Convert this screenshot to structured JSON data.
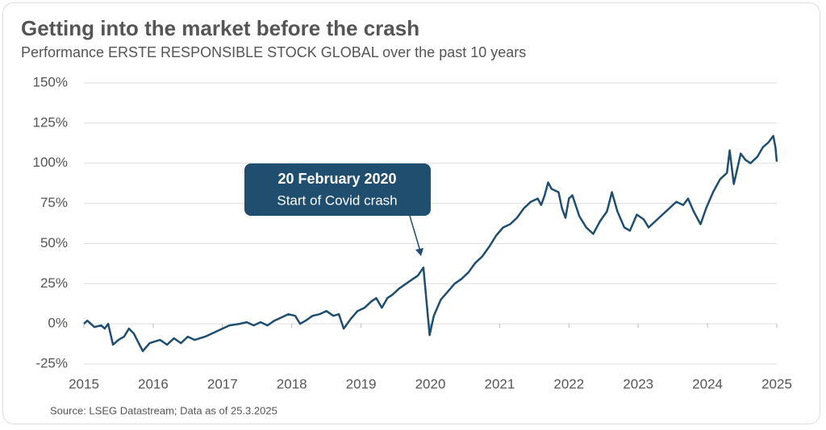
{
  "chart_data": {
    "type": "line",
    "title": "Getting into the market before the crash",
    "subtitle": "Performance ERSTE RESPONSIBLE STOCK GLOBAL over the past 10 years",
    "source": "Source: LSEG Datastream; Data as of 25.3.2025",
    "annotation": {
      "title": "20 February 2020",
      "text": "Start of Covid crash"
    },
    "xlim": [
      2015,
      2025
    ],
    "xticks": [
      2015,
      2016,
      2017,
      2018,
      2019,
      2020,
      2021,
      2022,
      2023,
      2024,
      2025
    ],
    "ylim": [
      -25,
      150
    ],
    "yticks": [
      {
        "value": -25,
        "label": "-25%"
      },
      {
        "value": 0,
        "label": "0%"
      },
      {
        "value": 25,
        "label": "25%"
      },
      {
        "value": 50,
        "label": "50%"
      },
      {
        "value": 75,
        "label": "75%"
      },
      {
        "value": 100,
        "label": "100%"
      },
      {
        "value": 125,
        "label": "125%"
      },
      {
        "value": 150,
        "label": "150%"
      }
    ],
    "grid": true,
    "series": [
      {
        "name": "ERSTE RESPONSIBLE STOCK GLOBAL",
        "color": "#1f4e6e",
        "x": [
          2015.0,
          2015.05,
          2015.15,
          2015.25,
          2015.3,
          2015.35,
          2015.42,
          2015.5,
          2015.58,
          2015.65,
          2015.72,
          2015.85,
          2015.95,
          2016.1,
          2016.2,
          2016.3,
          2016.4,
          2016.5,
          2016.6,
          2016.75,
          2016.85,
          2017.0,
          2017.1,
          2017.25,
          2017.35,
          2017.45,
          2017.55,
          2017.65,
          2017.75,
          2017.85,
          2017.95,
          2018.05,
          2018.12,
          2018.2,
          2018.3,
          2018.4,
          2018.5,
          2018.6,
          2018.68,
          2018.75,
          2018.85,
          2018.95,
          2019.05,
          2019.15,
          2019.22,
          2019.3,
          2019.38,
          2019.45,
          2019.55,
          2019.65,
          2019.75,
          2019.82,
          2019.9,
          2019.99,
          2020.05,
          2020.15,
          2020.25,
          2020.35,
          2020.45,
          2020.55,
          2020.65,
          2020.75,
          2020.85,
          2020.95,
          2021.05,
          2021.15,
          2021.25,
          2021.35,
          2021.45,
          2021.55,
          2021.6,
          2021.65,
          2021.7,
          2021.75,
          2021.85,
          2021.9,
          2021.95,
          2022.0,
          2022.05,
          2022.15,
          2022.25,
          2022.35,
          2022.45,
          2022.55,
          2022.62,
          2022.7,
          2022.8,
          2022.88,
          2022.98,
          2023.08,
          2023.15,
          2023.25,
          2023.35,
          2023.45,
          2023.55,
          2023.65,
          2023.72,
          2023.8,
          2023.9,
          2023.98,
          2024.08,
          2024.18,
          2024.28,
          2024.32,
          2024.38,
          2024.48,
          2024.55,
          2024.62,
          2024.72,
          2024.8,
          2024.88,
          2024.95,
          2024.98,
          2025.0
        ],
        "values": [
          0,
          2,
          -2,
          -1,
          -3,
          0,
          -13,
          -10,
          -8,
          -3,
          -6,
          -17,
          -12,
          -10,
          -13,
          -9,
          -12,
          -8,
          -10,
          -8,
          -6,
          -3,
          -1,
          0,
          1,
          -1,
          1,
          -1,
          2,
          4,
          6,
          5,
          0,
          2,
          5,
          6,
          8,
          5,
          6,
          -3,
          3,
          8,
          10,
          14,
          16,
          10,
          16,
          18,
          22,
          25,
          28,
          30,
          35,
          -7,
          5,
          15,
          20,
          25,
          28,
          32,
          38,
          42,
          48,
          55,
          60,
          62,
          66,
          72,
          76,
          78,
          74,
          80,
          88,
          84,
          82,
          72,
          66,
          78,
          80,
          67,
          60,
          56,
          64,
          70,
          82,
          70,
          60,
          58,
          68,
          65,
          60,
          64,
          68,
          72,
          76,
          74,
          78,
          70,
          62,
          72,
          82,
          90,
          94,
          108,
          87,
          106,
          102,
          100,
          104,
          110,
          113,
          117,
          110,
          101
        ]
      }
    ]
  }
}
